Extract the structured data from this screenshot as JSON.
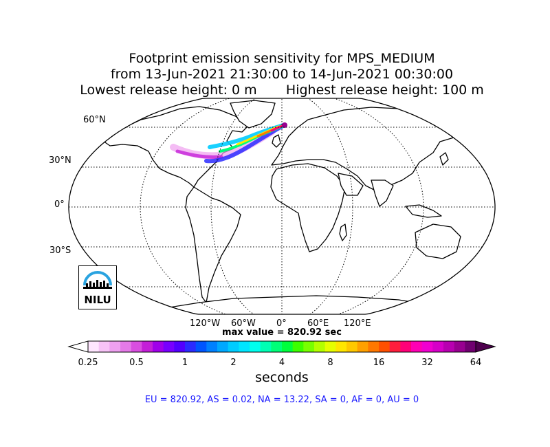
{
  "title": {
    "line1": "Footprint emission sensitivity for MPS_MEDIUM",
    "line2": "from 13-Jun-2021 21:30:00 to 14-Jun-2021 00:30:00",
    "line3": "Lowest release height: 0 m       Highest release height: 100 m"
  },
  "map": {
    "projection": "robinson",
    "lat_labels": [
      "60°N",
      "30°N",
      "0°",
      "30°S"
    ],
    "lon_labels": [
      "120°W",
      "60°W",
      "0°",
      "60°E",
      "120°E"
    ],
    "logo_text": "NILU"
  },
  "max_value_text": "max value = 820.92 sec",
  "colorbar": {
    "labels": [
      "0.25",
      "0.5",
      "1",
      "2",
      "4",
      "8",
      "16",
      "32",
      "64"
    ],
    "units": "seconds",
    "colors": [
      "#ffe6ff",
      "#f7c3f7",
      "#eea0f0",
      "#e57ae8",
      "#d94ee0",
      "#c41fd8",
      "#a000ea",
      "#7800ff",
      "#5200ff",
      "#2b2bff",
      "#0055ff",
      "#0080ff",
      "#00a8ff",
      "#00ccff",
      "#00e6ff",
      "#00ffee",
      "#00ffb4",
      "#00ff78",
      "#00ff3c",
      "#3cff00",
      "#78ff00",
      "#b4ff00",
      "#e6ff00",
      "#ffe600",
      "#ffc800",
      "#ffa000",
      "#ff7800",
      "#ff5000",
      "#ff1e3c",
      "#ff0078",
      "#ff00b4",
      "#f000d0",
      "#d600c8",
      "#b800b0",
      "#980090",
      "#700070"
    ]
  },
  "totals_text": "EU = 820.92,  AS = 0.02,  NA = 13.22,  SA = 0,  AF = 0,  AU = 0"
}
